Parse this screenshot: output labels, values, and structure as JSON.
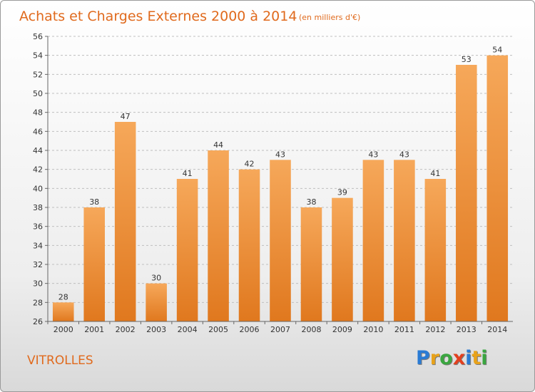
{
  "title": "Achats et Charges Externes 2000 à 2014",
  "subtitle": "(en milliers d'€)",
  "location": "VITROLLES",
  "logo": {
    "text": "Proxiti",
    "letters": [
      {
        "ch": "P",
        "color": "#2a7bd4"
      },
      {
        "ch": "r",
        "color": "#e8a21a"
      },
      {
        "ch": "o",
        "color": "#3aa640"
      },
      {
        "ch": "x",
        "color": "#e2401f"
      },
      {
        "ch": "i",
        "color": "#2a7bd4"
      },
      {
        "ch": "t",
        "color": "#e8a21a"
      },
      {
        "ch": "i",
        "color": "#3aa640"
      }
    ]
  },
  "colors": {
    "accent": "#e06a1d",
    "bar_light": "#f6a85a",
    "bar_dark": "#e0781e",
    "grid": "#bfbfbf"
  },
  "chart_data": {
    "type": "bar",
    "categories": [
      "2000",
      "2001",
      "2002",
      "2003",
      "2004",
      "2005",
      "2006",
      "2007",
      "2008",
      "2009",
      "2010",
      "2011",
      "2012",
      "2013",
      "2014"
    ],
    "values": [
      28,
      38,
      47,
      30,
      41,
      44,
      42,
      43,
      38,
      39,
      43,
      43,
      41,
      53,
      54
    ],
    "ylim": [
      26,
      56
    ],
    "yticks": [
      26,
      28,
      30,
      32,
      34,
      36,
      38,
      40,
      42,
      44,
      46,
      48,
      50,
      52,
      54,
      56
    ],
    "grid": true,
    "data_labels": true
  }
}
